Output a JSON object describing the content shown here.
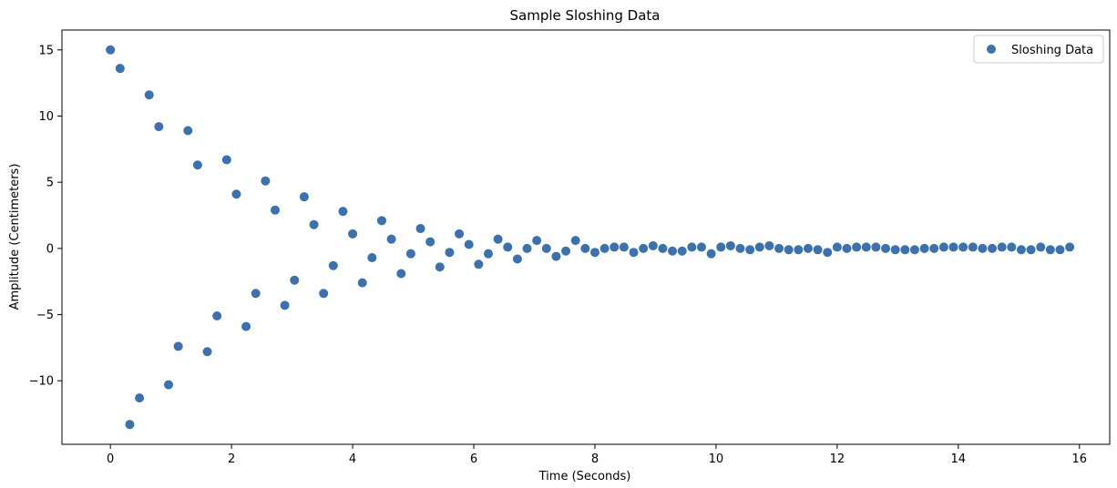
{
  "chart_data": {
    "type": "scatter",
    "title": "Sample Sloshing Data",
    "xlabel": "Time (Seconds)",
    "ylabel": "Amplitude (Centimeters)",
    "xlim": [
      -0.8,
      16.5
    ],
    "ylim": [
      -14.8,
      16.5
    ],
    "xticks": [
      0,
      2,
      4,
      6,
      8,
      10,
      12,
      14,
      16
    ],
    "xtick_labels": [
      "0",
      "2",
      "4",
      "6",
      "8",
      "10",
      "12",
      "14",
      "16"
    ],
    "yticks": [
      -10,
      -5,
      0,
      5,
      10,
      15
    ],
    "ytick_labels": [
      "−10",
      "−5",
      "0",
      "5",
      "10",
      "15"
    ],
    "grid": false,
    "legend_position": "top-right",
    "series": [
      {
        "name": "Sloshing Data",
        "color": "#3a71b0",
        "marker": "circle",
        "points": [
          [
            0.0,
            15.0
          ],
          [
            0.16,
            13.6
          ],
          [
            0.32,
            -13.3
          ],
          [
            0.48,
            -11.3
          ],
          [
            0.64,
            11.6
          ],
          [
            0.8,
            9.2
          ],
          [
            0.96,
            -10.3
          ],
          [
            1.12,
            -7.4
          ],
          [
            1.28,
            8.9
          ],
          [
            1.44,
            6.3
          ],
          [
            1.6,
            -7.8
          ],
          [
            1.76,
            -5.1
          ],
          [
            1.92,
            6.7
          ],
          [
            2.08,
            4.1
          ],
          [
            2.24,
            -5.9
          ],
          [
            2.4,
            -3.4
          ],
          [
            2.56,
            5.1
          ],
          [
            2.72,
            2.9
          ],
          [
            2.88,
            -4.3
          ],
          [
            3.04,
            -2.4
          ],
          [
            3.2,
            3.9
          ],
          [
            3.36,
            1.8
          ],
          [
            3.52,
            -3.4
          ],
          [
            3.68,
            -1.3
          ],
          [
            3.84,
            2.8
          ],
          [
            4.0,
            1.1
          ],
          [
            4.16,
            -2.6
          ],
          [
            4.32,
            -0.7
          ],
          [
            4.48,
            2.1
          ],
          [
            4.64,
            0.7
          ],
          [
            4.8,
            -1.9
          ],
          [
            4.96,
            -0.4
          ],
          [
            5.12,
            1.5
          ],
          [
            5.28,
            0.5
          ],
          [
            5.44,
            -1.4
          ],
          [
            5.6,
            -0.3
          ],
          [
            5.76,
            1.1
          ],
          [
            5.92,
            0.3
          ],
          [
            6.08,
            -1.2
          ],
          [
            6.24,
            -0.4
          ],
          [
            6.4,
            0.7
          ],
          [
            6.56,
            0.1
          ],
          [
            6.72,
            -0.8
          ],
          [
            6.88,
            0.0
          ],
          [
            7.04,
            0.6
          ],
          [
            7.2,
            0.0
          ],
          [
            7.36,
            -0.6
          ],
          [
            7.52,
            -0.2
          ],
          [
            7.68,
            0.6
          ],
          [
            7.84,
            0.0
          ],
          [
            8.0,
            -0.3
          ],
          [
            8.16,
            0.0
          ],
          [
            8.32,
            0.1
          ],
          [
            8.48,
            0.1
          ],
          [
            8.64,
            -0.3
          ],
          [
            8.8,
            0.0
          ],
          [
            8.96,
            0.2
          ],
          [
            9.12,
            0.0
          ],
          [
            9.28,
            -0.2
          ],
          [
            9.44,
            -0.2
          ],
          [
            9.6,
            0.1
          ],
          [
            9.76,
            0.1
          ],
          [
            9.92,
            -0.4
          ],
          [
            10.08,
            0.1
          ],
          [
            10.24,
            0.2
          ],
          [
            10.4,
            0.0
          ],
          [
            10.56,
            -0.1
          ],
          [
            10.72,
            0.1
          ],
          [
            10.88,
            0.2
          ],
          [
            11.04,
            0.0
          ],
          [
            11.2,
            -0.1
          ],
          [
            11.36,
            -0.1
          ],
          [
            11.52,
            0.0
          ],
          [
            11.68,
            -0.1
          ],
          [
            11.84,
            -0.3
          ],
          [
            12.0,
            0.1
          ],
          [
            12.16,
            0.0
          ],
          [
            12.32,
            0.1
          ],
          [
            12.48,
            0.1
          ],
          [
            12.64,
            0.1
          ],
          [
            12.8,
            0.0
          ],
          [
            12.96,
            -0.1
          ],
          [
            13.12,
            -0.1
          ],
          [
            13.28,
            -0.1
          ],
          [
            13.44,
            0.0
          ],
          [
            13.6,
            0.0
          ],
          [
            13.76,
            0.1
          ],
          [
            13.92,
            0.1
          ],
          [
            14.08,
            0.1
          ],
          [
            14.24,
            0.1
          ],
          [
            14.4,
            0.0
          ],
          [
            14.56,
            0.0
          ],
          [
            14.72,
            0.1
          ],
          [
            14.88,
            0.1
          ],
          [
            15.04,
            -0.1
          ],
          [
            15.2,
            -0.1
          ],
          [
            15.36,
            0.1
          ],
          [
            15.52,
            -0.1
          ],
          [
            15.68,
            -0.1
          ],
          [
            15.84,
            0.1
          ]
        ]
      }
    ]
  }
}
